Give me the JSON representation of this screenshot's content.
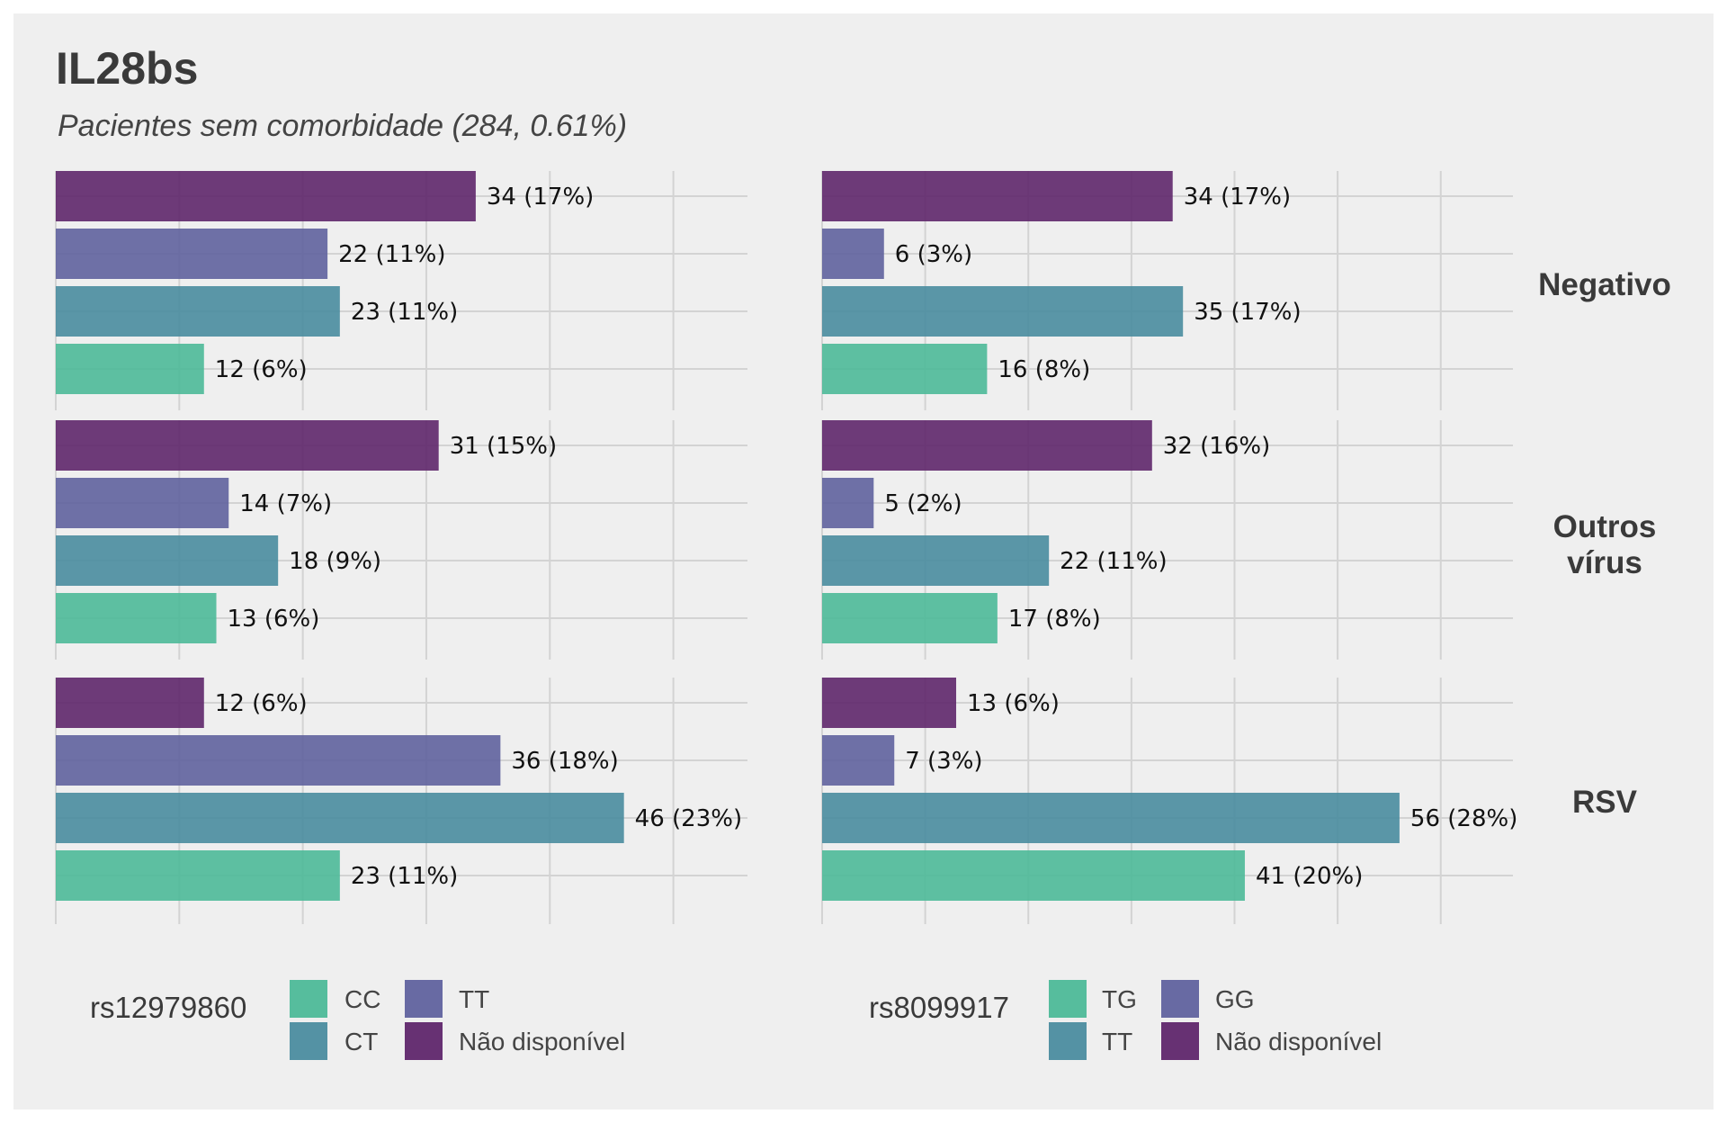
{
  "chart_data": {
    "type": "bar",
    "orientation": "horizontal",
    "title": "IL28bs",
    "subtitle": "Pacientes sem comorbidade (284, 0.61%)",
    "facet_rows": [
      "Negativo",
      "Outros\nvírus",
      "RSV"
    ],
    "grid": true,
    "legend_position": "bottom",
    "panels": [
      {
        "snp": "rs12979860",
        "xlim": [
          0,
          56
        ],
        "categories_top_to_bottom": [
          "Não disponível",
          "TT",
          "CT",
          "CC"
        ],
        "rows": [
          {
            "group": "Negativo",
            "values": [
              34,
              22,
              23,
              12
            ],
            "labels": [
              "34 (17%)",
              "22 (11%)",
              "23 (11%)",
              "12 (6%)"
            ]
          },
          {
            "group": "Outros vírus",
            "values": [
              31,
              14,
              18,
              13
            ],
            "labels": [
              "31 (15%)",
              "14 (7%)",
              "18 (9%)",
              "13 (6%)"
            ]
          },
          {
            "group": "RSV",
            "values": [
              12,
              36,
              46,
              23
            ],
            "labels": [
              "12 (6%)",
              "36 (18%)",
              "46 (23%)",
              "23 (11%)"
            ]
          }
        ],
        "legend": {
          "title": "rs12979860",
          "items": [
            {
              "label": "CC",
              "color": "#49b896"
            },
            {
              "label": "TT",
              "color": "#5c5e9c"
            },
            {
              "label": "CT",
              "color": "#468a9d"
            },
            {
              "label": "Não disponível",
              "color": "#5b2168"
            }
          ]
        }
      },
      {
        "snp": "rs8099917",
        "xlim": [
          0,
          67
        ],
        "categories_top_to_bottom": [
          "Não disponível",
          "GG",
          "TT",
          "TG"
        ],
        "rows": [
          {
            "group": "Negativo",
            "values": [
              34,
              6,
              35,
              16
            ],
            "labels": [
              "34 (17%)",
              "6 (3%)",
              "35 (17%)",
              "16 (8%)"
            ]
          },
          {
            "group": "Outros vírus",
            "values": [
              32,
              5,
              22,
              17
            ],
            "labels": [
              "32 (16%)",
              "5 (2%)",
              "22 (11%)",
              "17 (8%)"
            ]
          },
          {
            "group": "RSV",
            "values": [
              13,
              7,
              56,
              41
            ],
            "labels": [
              "13 (6%)",
              "7 (3%)",
              "56 (28%)",
              "41 (20%)"
            ]
          }
        ],
        "legend": {
          "title": "rs8099917",
          "items": [
            {
              "label": "TG",
              "color": "#49b896"
            },
            {
              "label": "GG",
              "color": "#5c5e9c"
            },
            {
              "label": "TT",
              "color": "#468a9d"
            },
            {
              "label": "Não disponível",
              "color": "#5b2168"
            }
          ]
        }
      }
    ],
    "colors": {
      "Não disponível": "#5b2168",
      "TT_left": "#5c5e9c",
      "CT": "#468a9d",
      "CC": "#49b896",
      "GG": "#5c5e9c",
      "TT_right": "#468a9d",
      "TG": "#49b896",
      "background": "#efefef",
      "gridline": "#d3d3d3"
    }
  }
}
